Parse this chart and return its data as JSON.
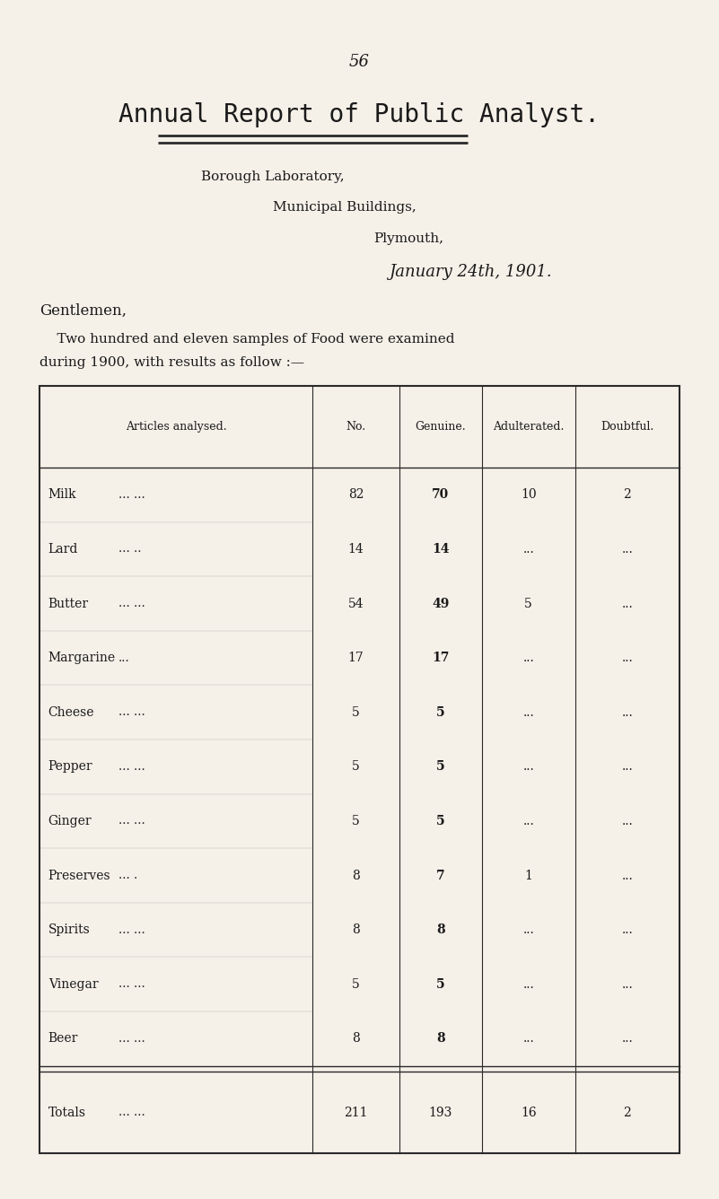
{
  "bg_color": "#f5f0e8",
  "page_number": "56",
  "title": "Annual Report of Public Analyst.",
  "subtitle1": "Borough Laboratory,",
  "subtitle2": "Municipal Buildings,",
  "subtitle3": "Plymouth,",
  "subtitle4": "January 24th, 1901.",
  "greeting": "Gentlemen,",
  "body_text1": "    Two hundred and eleven samples of Food were examined",
  "body_text2": "during 1900, with results as follow :—",
  "table_headers": [
    "Articles analysed.",
    "No.",
    "Genuine.",
    "Adulterated.",
    "Doubtful."
  ],
  "table_rows": [
    [
      "Milk       ...       ...",
      "82",
      "70",
      "10",
      "2"
    ],
    [
      "Lard       ...       ..",
      "14",
      "14",
      "...",
      "..."
    ],
    [
      "Butter     ...       ...",
      "54",
      "49",
      "5",
      "..."
    ],
    [
      "Margarine       ...",
      "17",
      "17",
      "...",
      "..."
    ],
    [
      "Cheese   ...       ...",
      "5",
      "5",
      "...",
      "..."
    ],
    [
      "Pepper   ...       ...",
      "5",
      "5",
      "...",
      "..."
    ],
    [
      "Ginger   ...       ...",
      "5",
      "5",
      "...",
      "..."
    ],
    [
      "Preserves ...     .",
      "8",
      "7",
      "1",
      "..."
    ],
    [
      "Spirits    ...       ...",
      "8",
      "8",
      "...",
      "..."
    ],
    [
      "Vinegar  ...       ...",
      "5",
      "5",
      "...",
      "..."
    ],
    [
      "Beer       ...       ...",
      "8",
      "8",
      "...",
      "..."
    ]
  ],
  "totals_row": [
    "Totals      ...       ...",
    "211",
    "193",
    "16",
    "2"
  ],
  "text_color": "#1a1a1a",
  "table_line_color": "#2a2a2a"
}
